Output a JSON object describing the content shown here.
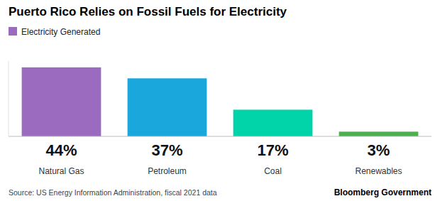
{
  "chart_data": {
    "type": "bar",
    "title": "Puerto Rico Relies on Fossil Fuels for Electricity",
    "categories": [
      "Natural Gas",
      "Petroleum",
      "Coal",
      "Renewables"
    ],
    "series": [
      {
        "name": "Electricity Generated",
        "colors": [
          "#9b6bbf",
          "#1aa8dc",
          "#00d4a8",
          "#4caf50"
        ],
        "values": [
          44,
          37,
          17,
          3
        ],
        "value_labels": [
          "44%",
          "37%",
          "17%",
          "3%"
        ]
      }
    ],
    "ylim": [
      0,
      48
    ],
    "grid": false,
    "legend": "upper left",
    "data_labels": true,
    "tick_labels": "x",
    "annotations": [
      "Source: US Energy Information Administration, fiscal 2021 data",
      "Bloomberg Government"
    ]
  }
}
